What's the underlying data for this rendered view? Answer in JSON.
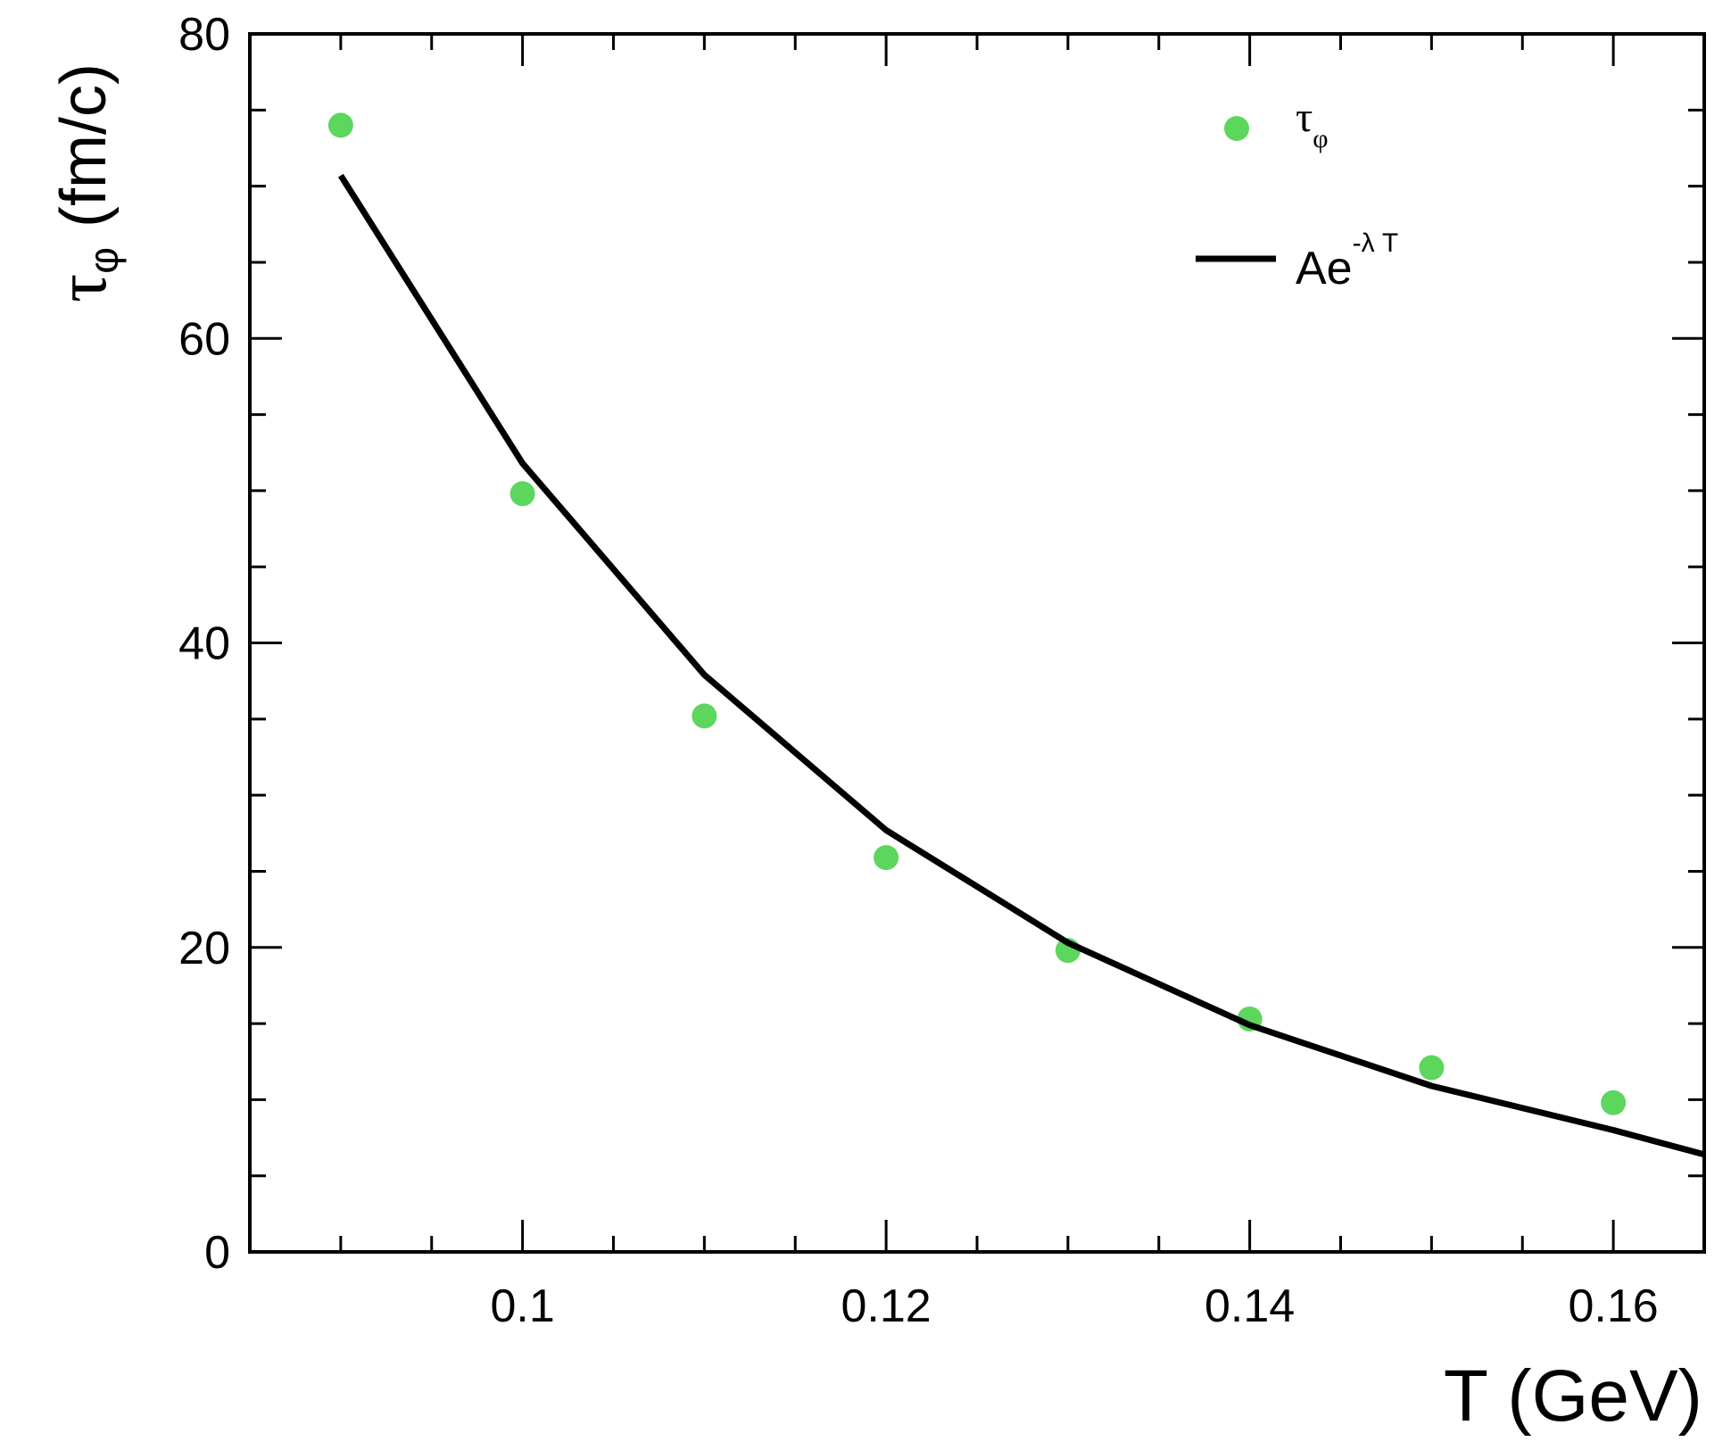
{
  "chart_data": {
    "type": "scatter",
    "xlabel": "T (GeV)",
    "ylabel": {
      "symbol": "τ",
      "subscript": "φ",
      "unit": "(fm/c)"
    },
    "xlim": [
      0.085,
      0.165
    ],
    "ylim": [
      0,
      80
    ],
    "xticks": [
      0.1,
      0.12,
      0.14,
      0.16
    ],
    "xtick_labels": [
      "0.1",
      "0.12",
      "0.14",
      "0.16"
    ],
    "yticks": [
      0,
      20,
      40,
      60,
      80
    ],
    "ytick_labels": [
      "0",
      "20",
      "40",
      "60",
      "80"
    ],
    "grid": false,
    "legend_position": "top-right",
    "series": [
      {
        "name": "τφ",
        "legend_symbol": "τ",
        "legend_subscript": "φ",
        "kind": "scatter",
        "color": "#5cd65c",
        "x": [
          0.09,
          0.1,
          0.11,
          0.12,
          0.13,
          0.14,
          0.15,
          0.16
        ],
        "y": [
          74.0,
          49.8,
          35.2,
          25.9,
          19.8,
          15.3,
          12.1,
          9.8
        ]
      },
      {
        "name": "Ae^-λ T",
        "legend_base": "Ae",
        "legend_exponent": "-λ T",
        "kind": "line",
        "color": "#000000",
        "x": [
          0.09,
          0.1,
          0.11,
          0.12,
          0.13,
          0.14,
          0.15,
          0.16,
          0.165
        ],
        "y": [
          70.7,
          51.8,
          37.9,
          27.7,
          20.3,
          14.9,
          10.9,
          8.0,
          6.4
        ]
      }
    ]
  }
}
